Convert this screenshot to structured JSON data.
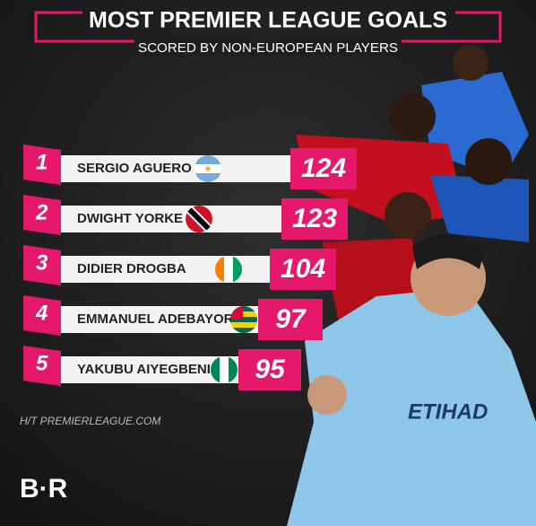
{
  "header": {
    "title": "MOST PREMIER LEAGUE GOALS",
    "subtitle": "SCORED BY NON-EUROPEAN PLAYERS"
  },
  "rankings": [
    {
      "rank": "1",
      "name": "SERGIO AGUERO",
      "goals": "124"
    },
    {
      "rank": "2",
      "name": "DWIGHT YORKE",
      "goals": "123"
    },
    {
      "rank": "3",
      "name": "DIDIER DROGBA",
      "goals": "104"
    },
    {
      "rank": "4",
      "name": "EMMANUEL ADEBAYOR",
      "goals": "97"
    },
    {
      "rank": "5",
      "name": "YAKUBU AIYEGBENI",
      "goals": "95"
    }
  ],
  "source": "H/T PREMIERLEAGUE.COM",
  "logo": "B·R"
}
